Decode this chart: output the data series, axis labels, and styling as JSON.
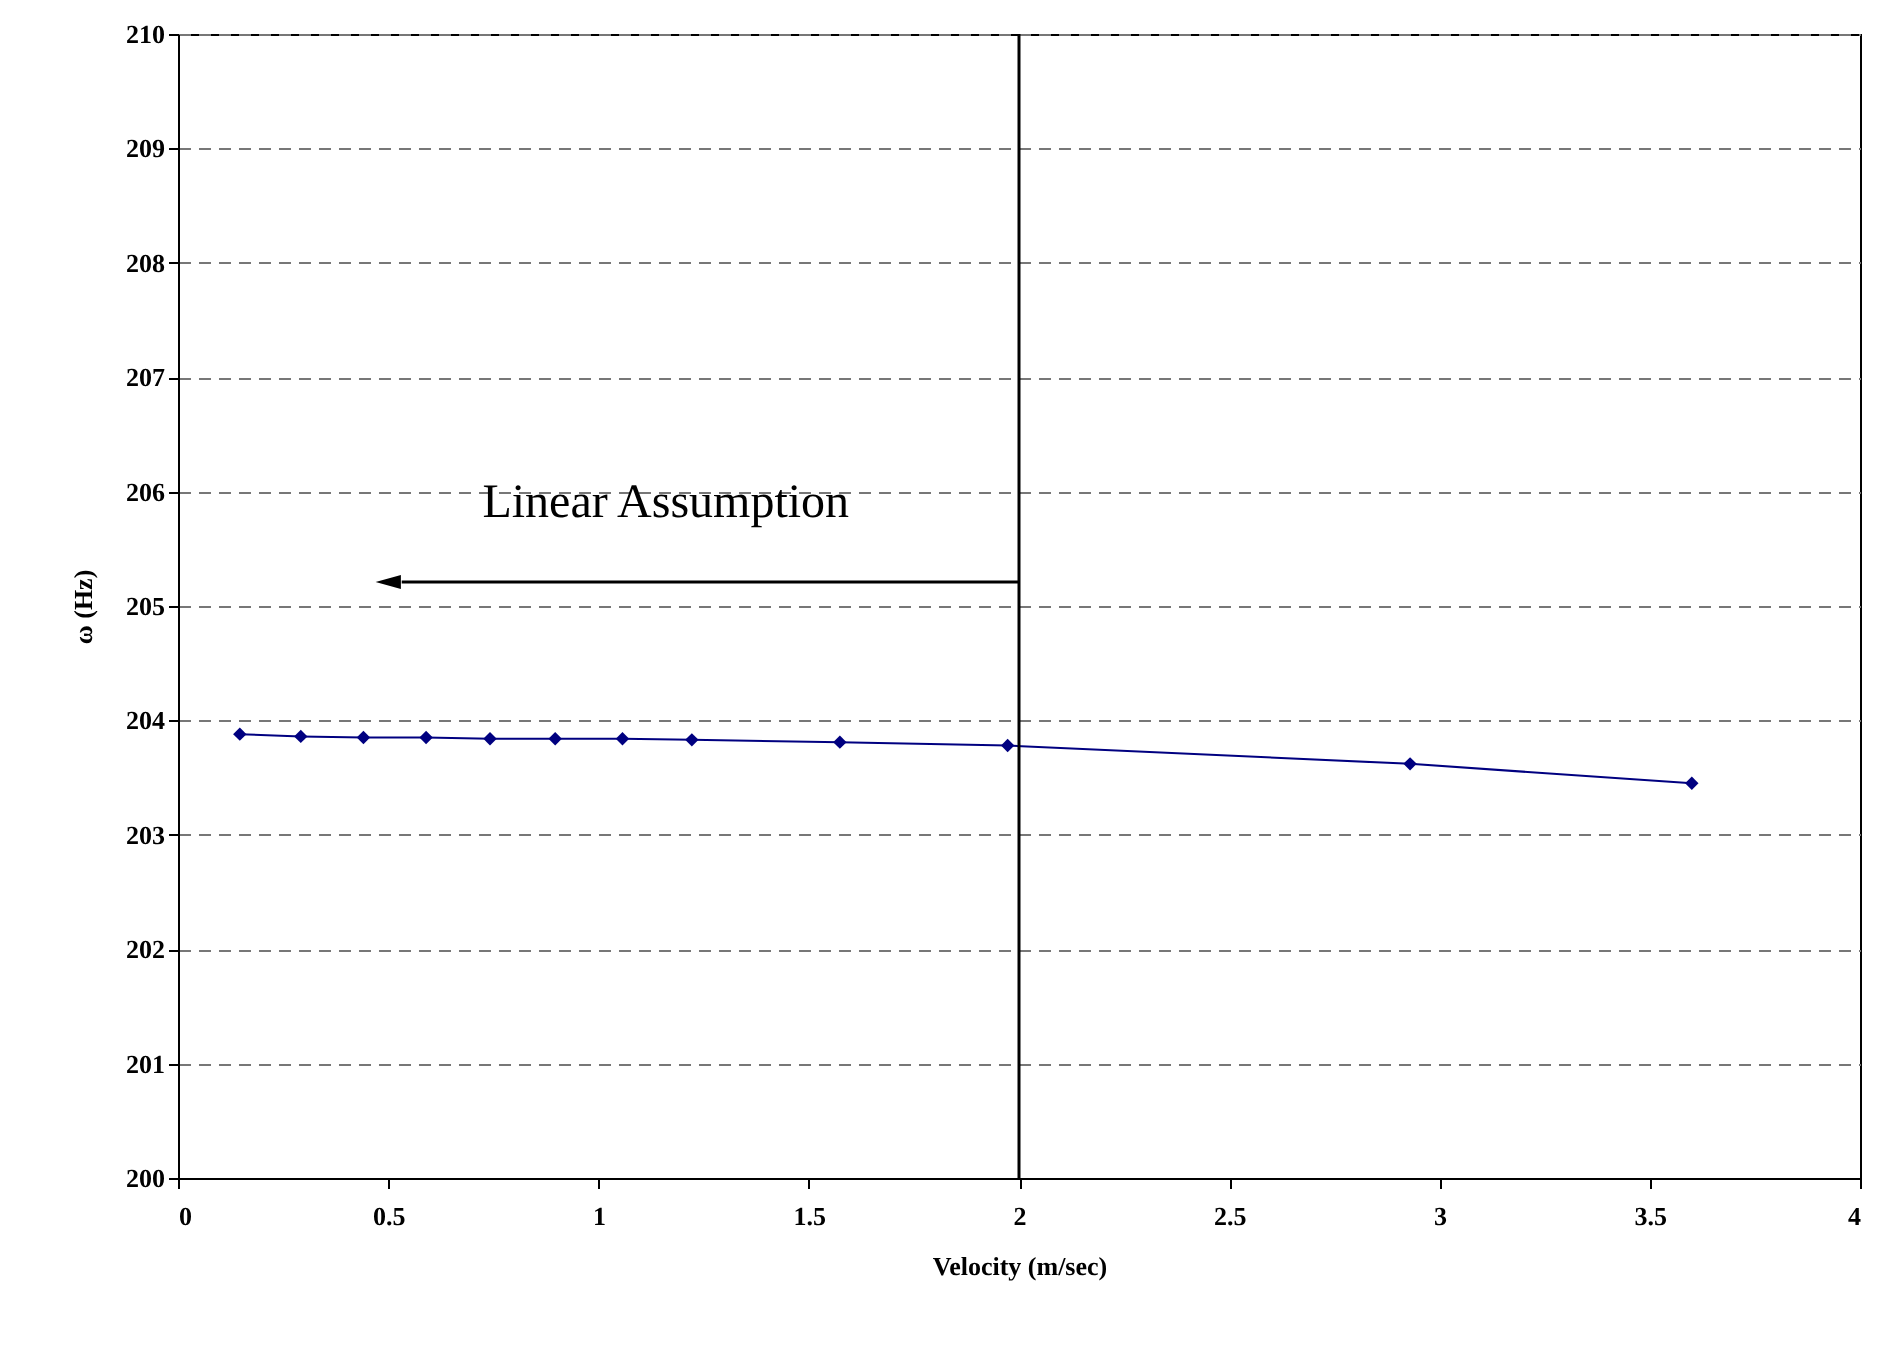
{
  "chart_data": {
    "type": "line",
    "xlabel": "Velocity (m/sec)",
    "ylabel": "ω (Hz)",
    "x": [
      0.147,
      0.292,
      0.441,
      0.59,
      0.742,
      0.897,
      1.057,
      1.222,
      1.574,
      1.973,
      2.93,
      3.6
    ],
    "series": [
      {
        "color": "#000080",
        "values": [
          203.88,
          203.86,
          203.85,
          203.85,
          203.84,
          203.84,
          203.84,
          203.83,
          203.81,
          203.78,
          203.62,
          203.45
        ]
      }
    ],
    "xlim": [
      0,
      4
    ],
    "xticks": [
      0,
      0.5,
      1,
      1.5,
      2,
      2.5,
      3,
      3.5,
      4
    ],
    "ylim": [
      200,
      210
    ],
    "yticks": [
      200,
      201,
      202,
      203,
      204,
      205,
      206,
      207,
      208,
      209,
      210
    ],
    "grid": "y",
    "marker": "diamond",
    "line_style": "solid",
    "ref_lines": [
      {
        "axis": "x",
        "value": 2,
        "color": "#000000"
      }
    ],
    "annotations": [
      "Linear Assumption"
    ]
  }
}
